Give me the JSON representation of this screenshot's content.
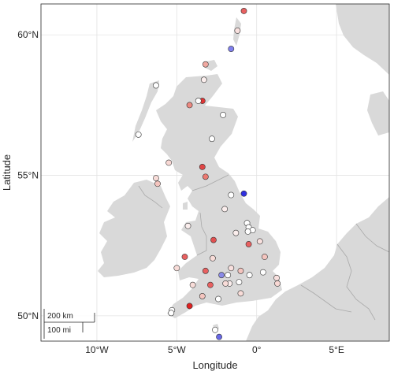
{
  "axes": {
    "xlabel": "Longitude",
    "ylabel": "Latitude",
    "x_ticks": [
      {
        "lon": -10,
        "label": "10°W"
      },
      {
        "lon": -5,
        "label": "5°W"
      },
      {
        "lon": 0,
        "label": "0°"
      },
      {
        "lon": 5,
        "label": "5°E"
      }
    ],
    "y_ticks": [
      {
        "lat": 50,
        "label": "50°N"
      },
      {
        "lat": 55,
        "label": "55°N"
      },
      {
        "lat": 60,
        "label": "60°N"
      }
    ]
  },
  "scale_bar": {
    "km_label": "200 km",
    "mi_label": "100 mi"
  },
  "colors": {
    "land": "#d9d9d9",
    "water": "#ffffff",
    "strong_red": "#e03030",
    "light_red": "#f2b0aa",
    "white": "#ffffff",
    "blue": "#3a3ae0",
    "light_blue": "#8a8ae8"
  },
  "chart_data": {
    "type": "scatter",
    "xlabel": "Longitude",
    "ylabel": "Latitude",
    "xlim": [
      -13.5,
      8.3
    ],
    "ylim": [
      49.1,
      61.1
    ],
    "grid": true,
    "stations": [
      {
        "lon": -0.8,
        "lat": 60.85,
        "color": "#e86060"
      },
      {
        "lon": -1.2,
        "lat": 60.15,
        "color": "#f8e0de"
      },
      {
        "lon": -1.6,
        "lat": 59.5,
        "color": "#8080ee"
      },
      {
        "lon": -3.2,
        "lat": 58.95,
        "color": "#f0a8a0"
      },
      {
        "lon": -3.3,
        "lat": 58.4,
        "color": "#fbeeed"
      },
      {
        "lon": -6.3,
        "lat": 58.2,
        "color": "#ffffff"
      },
      {
        "lon": -3.4,
        "lat": 57.65,
        "color": "#e03535"
      },
      {
        "lon": -3.65,
        "lat": 57.65,
        "color": "#ffffff"
      },
      {
        "lon": -4.2,
        "lat": 57.5,
        "color": "#ec8880"
      },
      {
        "lon": -2.1,
        "lat": 57.15,
        "color": "#ffffff"
      },
      {
        "lon": -7.4,
        "lat": 56.45,
        "color": "#ffffff"
      },
      {
        "lon": -2.8,
        "lat": 56.3,
        "color": "#ffffff"
      },
      {
        "lon": -5.5,
        "lat": 55.45,
        "color": "#f8d8d4"
      },
      {
        "lon": -3.4,
        "lat": 55.3,
        "color": "#e04545"
      },
      {
        "lon": -6.3,
        "lat": 54.9,
        "color": "#f8dcd8"
      },
      {
        "lon": -6.2,
        "lat": 54.7,
        "color": "#f4c4be"
      },
      {
        "lon": -3.2,
        "lat": 54.95,
        "color": "#ec7a72"
      },
      {
        "lon": -1.6,
        "lat": 54.3,
        "color": "#ffffff"
      },
      {
        "lon": -0.8,
        "lat": 54.35,
        "color": "#3030e0"
      },
      {
        "lon": -2.0,
        "lat": 53.8,
        "color": "#fbeeed"
      },
      {
        "lon": -0.6,
        "lat": 53.3,
        "color": "#ffffff"
      },
      {
        "lon": -0.5,
        "lat": 53.15,
        "color": "#ffffff"
      },
      {
        "lon": -0.25,
        "lat": 53.05,
        "color": "#ffffff"
      },
      {
        "lon": -0.55,
        "lat": 53.0,
        "color": "#ffffff"
      },
      {
        "lon": -1.3,
        "lat": 52.95,
        "color": "#fbeeed"
      },
      {
        "lon": -4.3,
        "lat": 53.2,
        "color": "#fbeeed"
      },
      {
        "lon": -2.7,
        "lat": 52.7,
        "color": "#e05050"
      },
      {
        "lon": 0.2,
        "lat": 52.65,
        "color": "#f8e0de"
      },
      {
        "lon": -0.5,
        "lat": 52.55,
        "color": "#e86060"
      },
      {
        "lon": -4.5,
        "lat": 52.1,
        "color": "#e86060"
      },
      {
        "lon": -2.75,
        "lat": 52.05,
        "color": "#f8dcd8"
      },
      {
        "lon": 0.5,
        "lat": 52.1,
        "color": "#f4c4be"
      },
      {
        "lon": -5.0,
        "lat": 51.7,
        "color": "#f8dcd8"
      },
      {
        "lon": -1.6,
        "lat": 51.7,
        "color": "#f8e0de"
      },
      {
        "lon": -3.2,
        "lat": 51.6,
        "color": "#e86060"
      },
      {
        "lon": -1.0,
        "lat": 51.6,
        "color": "#f4c4be"
      },
      {
        "lon": 0.4,
        "lat": 51.55,
        "color": "#ffffff"
      },
      {
        "lon": -2.2,
        "lat": 51.45,
        "color": "#8a8ae8"
      },
      {
        "lon": -0.45,
        "lat": 51.45,
        "color": "#ffffff"
      },
      {
        "lon": -1.8,
        "lat": 51.45,
        "color": "#ffffff"
      },
      {
        "lon": 1.25,
        "lat": 51.35,
        "color": "#f8e0de"
      },
      {
        "lon": -1.1,
        "lat": 51.2,
        "color": "#ffffff"
      },
      {
        "lon": -1.7,
        "lat": 51.15,
        "color": "#fbeeed"
      },
      {
        "lon": -1.95,
        "lat": 51.15,
        "color": "#f8dcd8"
      },
      {
        "lon": 1.3,
        "lat": 51.15,
        "color": "#f8d8d4"
      },
      {
        "lon": -2.9,
        "lat": 51.1,
        "color": "#e86060"
      },
      {
        "lon": -4.0,
        "lat": 51.1,
        "color": "#f8dcd8"
      },
      {
        "lon": -3.4,
        "lat": 50.7,
        "color": "#f4c4be"
      },
      {
        "lon": -1.0,
        "lat": 50.8,
        "color": "#f8dcd8"
      },
      {
        "lon": -2.4,
        "lat": 50.6,
        "color": "#ffffff"
      },
      {
        "lon": -4.2,
        "lat": 50.35,
        "color": "#e02020"
      },
      {
        "lon": -5.3,
        "lat": 50.2,
        "color": "#ffffff"
      },
      {
        "lon": -5.35,
        "lat": 50.1,
        "color": "#ffffff"
      },
      {
        "lon": -2.6,
        "lat": 49.5,
        "color": "#ffffff"
      },
      {
        "lon": -2.35,
        "lat": 49.25,
        "color": "#6868e6"
      }
    ]
  }
}
